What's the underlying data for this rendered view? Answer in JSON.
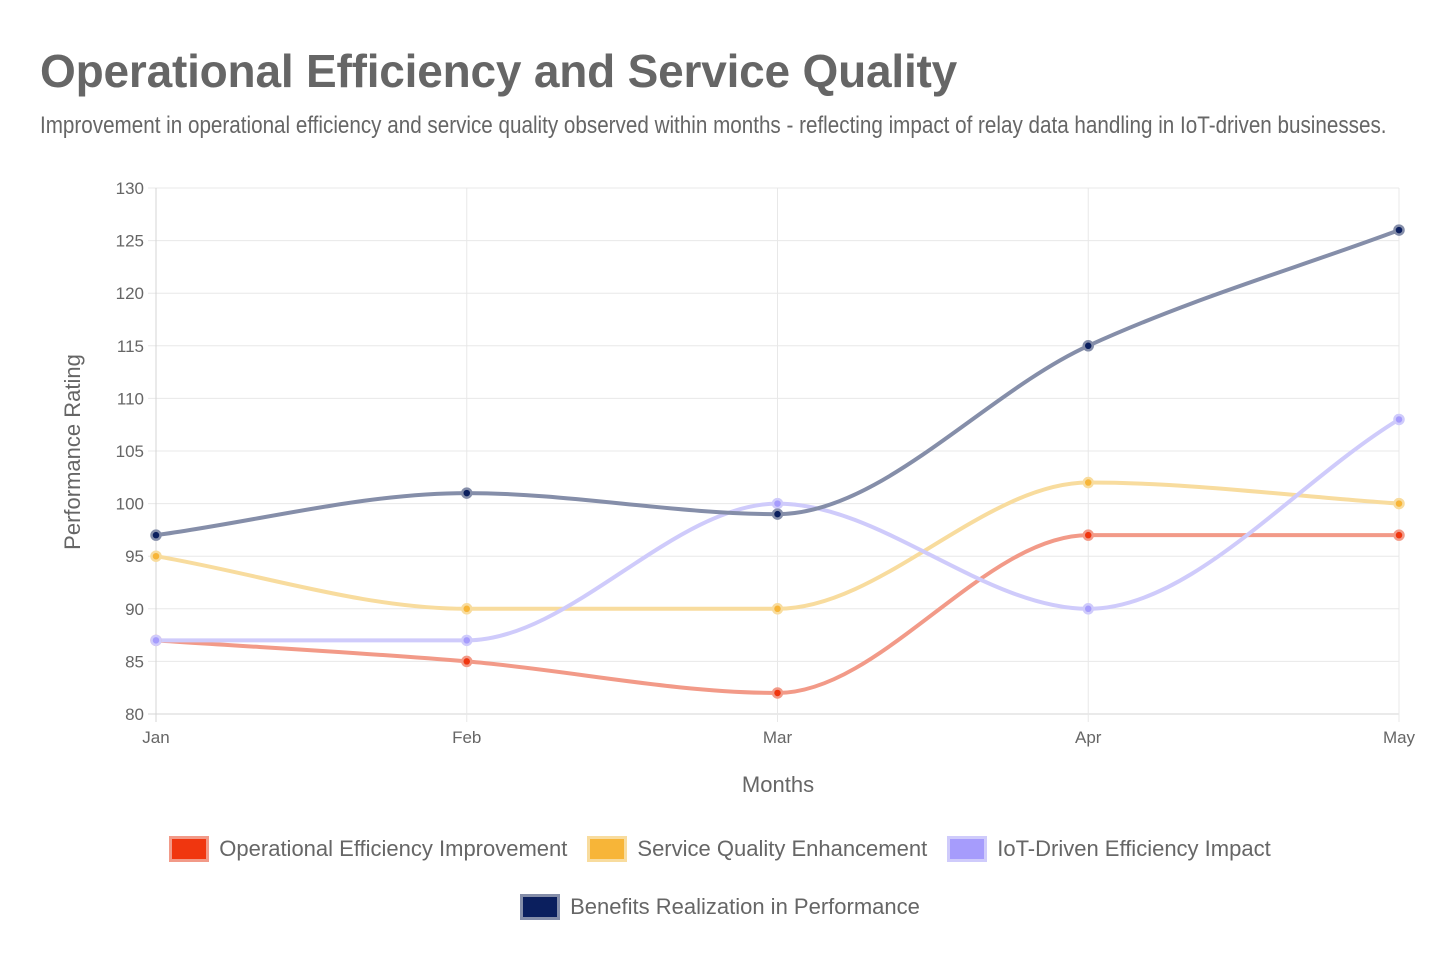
{
  "chart_data": {
    "type": "line",
    "title": "Operational Efficiency and Service Quality",
    "subtitle": "Improvement in operational efficiency and service quality observed within months - reflecting impact of relay data handling in IoT-driven businesses.",
    "xlabel": "Months",
    "ylabel": "Performance Rating",
    "categories": [
      "Jan",
      "Feb",
      "Mar",
      "Apr",
      "May"
    ],
    "ylim": [
      80,
      130
    ],
    "yticks": [
      80,
      85,
      90,
      95,
      100,
      105,
      110,
      115,
      120,
      125,
      130
    ],
    "grid": true,
    "legend_position": "bottom",
    "series": [
      {
        "name": "Operational Efficiency Improvement",
        "values": [
          87,
          85,
          82,
          97,
          97
        ],
        "color": "#f0360f",
        "line_color": "#f29a88"
      },
      {
        "name": "Service Quality Enhancement",
        "values": [
          95,
          90,
          90,
          102,
          100
        ],
        "color": "#f7b538",
        "line_color": "#f8dc9e"
      },
      {
        "name": "IoT-Driven Efficiency Impact",
        "values": [
          87,
          87,
          100,
          90,
          108
        ],
        "color": "#a69cfc",
        "line_color": "#cfcbfb"
      },
      {
        "name": "Benefits Realization in Performance",
        "values": [
          97,
          101,
          99,
          115,
          126
        ],
        "color": "#0b1f5e",
        "line_color": "#858ea9"
      }
    ]
  }
}
